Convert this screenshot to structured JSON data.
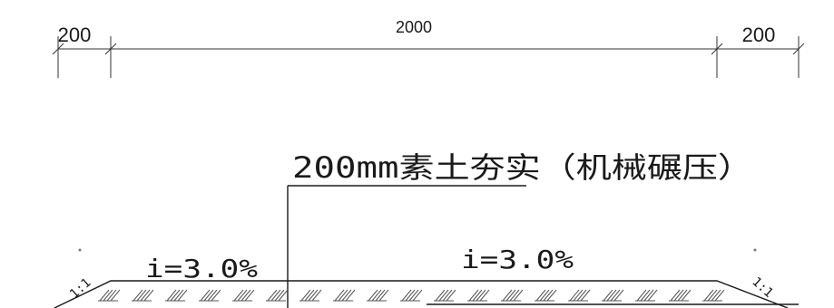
{
  "dimensions": {
    "left": "200",
    "middle": "2000",
    "right": "200"
  },
  "annotation": {
    "label": "200mm素土夯实（机械碾压）"
  },
  "slopes": {
    "left": "i=3.0%",
    "center": "i=3.0%",
    "side_left": "1:1",
    "side_right": "1:1"
  }
}
